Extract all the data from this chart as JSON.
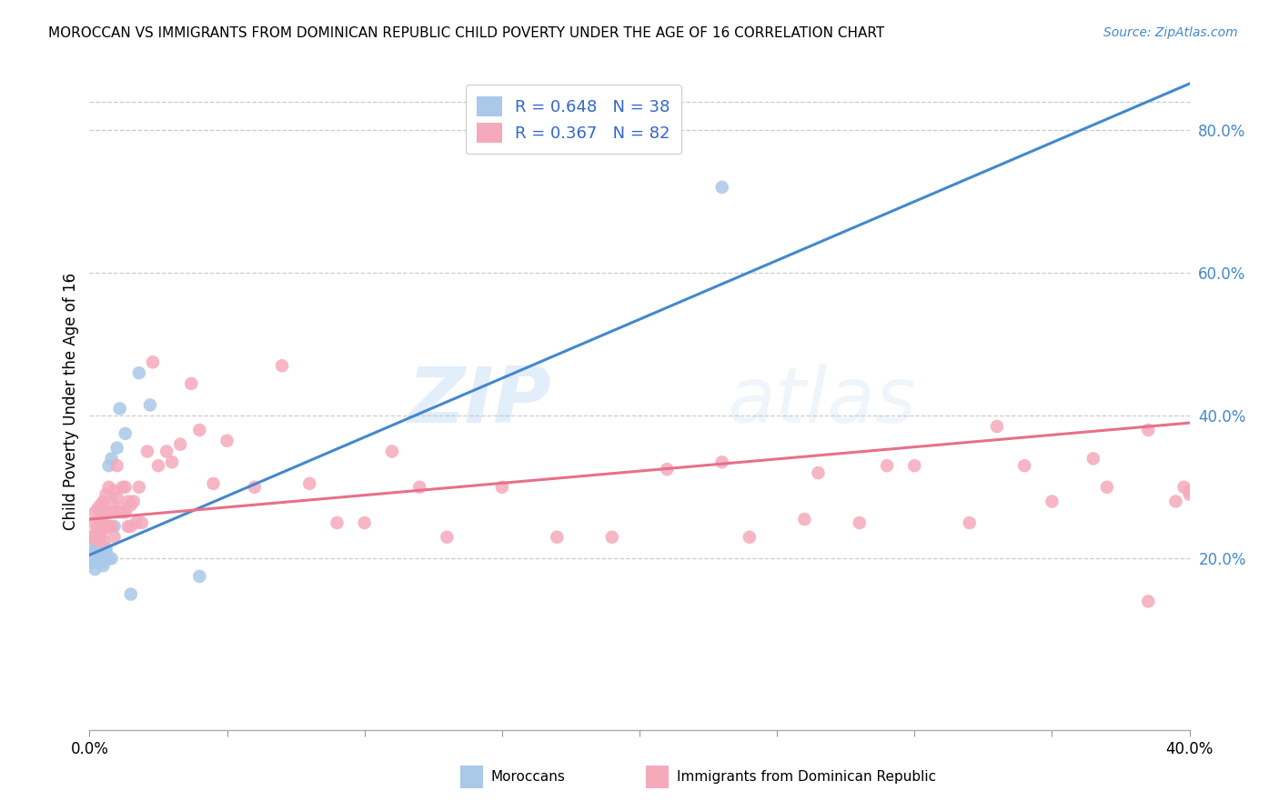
{
  "title": "MOROCCAN VS IMMIGRANTS FROM DOMINICAN REPUBLIC CHILD POVERTY UNDER THE AGE OF 16 CORRELATION CHART",
  "source": "Source: ZipAtlas.com",
  "ylabel": "Child Poverty Under the Age of 16",
  "x_ticks": [
    0.0,
    0.05,
    0.1,
    0.15,
    0.2,
    0.25,
    0.3,
    0.35,
    0.4
  ],
  "x_tick_labels_show": {
    "0.0": "0.0%",
    "0.4": "40.0%"
  },
  "y_ticks_right": [
    0.2,
    0.4,
    0.6,
    0.8
  ],
  "xlim": [
    0.0,
    0.4
  ],
  "ylim": [
    -0.04,
    0.88
  ],
  "legend_blue_label": "R = 0.648   N = 38",
  "legend_pink_label": "R = 0.367   N = 82",
  "bottom_legend_blue": "Moroccans",
  "bottom_legend_pink": "Immigrants from Dominican Republic",
  "blue_color": "#aac8e8",
  "pink_color": "#f5aabb",
  "blue_line_color": "#4488cc",
  "pink_line_color": "#e8708a",
  "right_tick_color": "#4488cc",
  "legend_val_color": "#3366cc",
  "watermark_zip": "ZIP",
  "watermark_atlas": "atlas",
  "blue_trend_x": [
    0.0,
    0.4
  ],
  "blue_trend_y": [
    0.205,
    0.865
  ],
  "pink_trend_x": [
    0.0,
    0.4
  ],
  "pink_trend_y": [
    0.255,
    0.39
  ],
  "blue_x": [
    0.001,
    0.001,
    0.001,
    0.001,
    0.002,
    0.002,
    0.002,
    0.002,
    0.002,
    0.002,
    0.003,
    0.003,
    0.003,
    0.003,
    0.003,
    0.004,
    0.004,
    0.004,
    0.005,
    0.005,
    0.005,
    0.005,
    0.006,
    0.006,
    0.006,
    0.007,
    0.007,
    0.008,
    0.008,
    0.009,
    0.01,
    0.011,
    0.013,
    0.015,
    0.018,
    0.022,
    0.23,
    0.04
  ],
  "blue_y": [
    0.195,
    0.2,
    0.205,
    0.215,
    0.185,
    0.195,
    0.2,
    0.205,
    0.215,
    0.225,
    0.195,
    0.205,
    0.215,
    0.22,
    0.23,
    0.195,
    0.205,
    0.215,
    0.19,
    0.195,
    0.205,
    0.215,
    0.2,
    0.21,
    0.215,
    0.2,
    0.33,
    0.2,
    0.34,
    0.245,
    0.355,
    0.41,
    0.375,
    0.15,
    0.46,
    0.415,
    0.72,
    0.175
  ],
  "pink_x": [
    0.001,
    0.001,
    0.002,
    0.002,
    0.003,
    0.003,
    0.003,
    0.004,
    0.004,
    0.004,
    0.005,
    0.005,
    0.005,
    0.005,
    0.006,
    0.006,
    0.006,
    0.007,
    0.007,
    0.007,
    0.008,
    0.008,
    0.008,
    0.009,
    0.009,
    0.01,
    0.01,
    0.01,
    0.011,
    0.012,
    0.012,
    0.013,
    0.013,
    0.014,
    0.014,
    0.015,
    0.015,
    0.016,
    0.017,
    0.018,
    0.019,
    0.021,
    0.023,
    0.025,
    0.028,
    0.03,
    0.033,
    0.037,
    0.04,
    0.045,
    0.05,
    0.06,
    0.07,
    0.08,
    0.09,
    0.1,
    0.11,
    0.12,
    0.13,
    0.15,
    0.17,
    0.19,
    0.21,
    0.23,
    0.26,
    0.28,
    0.3,
    0.33,
    0.35,
    0.37,
    0.385,
    0.395,
    0.398,
    0.4,
    0.4,
    0.385,
    0.365,
    0.34,
    0.32,
    0.29,
    0.265,
    0.24
  ],
  "pink_y": [
    0.23,
    0.25,
    0.235,
    0.265,
    0.225,
    0.245,
    0.27,
    0.23,
    0.255,
    0.275,
    0.225,
    0.24,
    0.26,
    0.28,
    0.245,
    0.265,
    0.29,
    0.245,
    0.265,
    0.3,
    0.245,
    0.265,
    0.28,
    0.23,
    0.295,
    0.265,
    0.285,
    0.33,
    0.27,
    0.265,
    0.3,
    0.265,
    0.3,
    0.245,
    0.28,
    0.245,
    0.275,
    0.28,
    0.25,
    0.3,
    0.25,
    0.35,
    0.475,
    0.33,
    0.35,
    0.335,
    0.36,
    0.445,
    0.38,
    0.305,
    0.365,
    0.3,
    0.47,
    0.305,
    0.25,
    0.25,
    0.35,
    0.3,
    0.23,
    0.3,
    0.23,
    0.23,
    0.325,
    0.335,
    0.255,
    0.25,
    0.33,
    0.385,
    0.28,
    0.3,
    0.14,
    0.28,
    0.3,
    0.29,
    0.295,
    0.38,
    0.34,
    0.33,
    0.25,
    0.33,
    0.32,
    0.23
  ]
}
